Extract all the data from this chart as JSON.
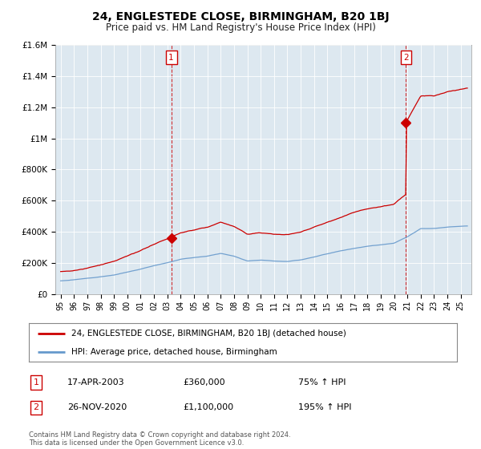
{
  "title": "24, ENGLESTEDE CLOSE, BIRMINGHAM, B20 1BJ",
  "subtitle": "Price paid vs. HM Land Registry's House Price Index (HPI)",
  "hpi_color": "#6699cc",
  "price_color": "#cc0000",
  "plot_bg_color": "#dde8f0",
  "ylim": [
    0,
    1600000
  ],
  "yticks": [
    0,
    200000,
    400000,
    600000,
    800000,
    1000000,
    1200000,
    1400000,
    1600000
  ],
  "ytick_labels": [
    "£0",
    "£200K",
    "£400K",
    "£600K",
    "£800K",
    "£1M",
    "£1.2M",
    "£1.4M",
    "£1.6M"
  ],
  "sale1_date": 2003.29,
  "sale1_price": 360000,
  "sale2_date": 2020.9,
  "sale2_price": 1100000,
  "legend_label_price": "24, ENGLESTEDE CLOSE, BIRMINGHAM, B20 1BJ (detached house)",
  "legend_label_hpi": "HPI: Average price, detached house, Birmingham",
  "annotation1_label": "1",
  "annotation1_date": "17-APR-2003",
  "annotation1_price": "£360,000",
  "annotation1_hpi": "75% ↑ HPI",
  "annotation2_label": "2",
  "annotation2_date": "26-NOV-2020",
  "annotation2_price": "£1,100,000",
  "annotation2_hpi": "195% ↑ HPI",
  "footer": "Contains HM Land Registry data © Crown copyright and database right 2024.\nThis data is licensed under the Open Government Licence v3.0.",
  "background_color": "#ffffff",
  "grid_color": "#ffffff"
}
